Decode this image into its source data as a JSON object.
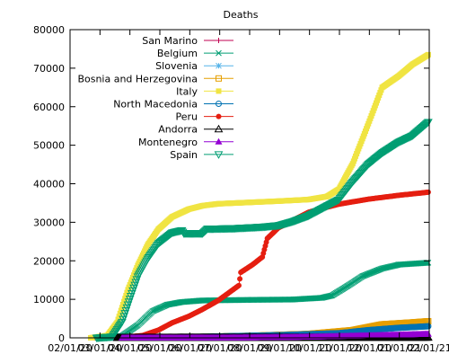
{
  "chart_data": {
    "type": "line",
    "title": "Deaths",
    "xlabel": "",
    "ylabel": "",
    "x_ticks": [
      "02/01/20",
      "03/01/20",
      "04/01/20",
      "05/01/20",
      "06/01/20",
      "07/01/20",
      "08/01/20",
      "09/01/20",
      "10/01/20",
      "11/01/20",
      "12/01/20",
      "01/01/21",
      "02/01/21"
    ],
    "y_ticks": [
      "0",
      "10000",
      "20000",
      "30000",
      "40000",
      "50000",
      "60000",
      "70000",
      "80000"
    ],
    "xlim": [
      "2020-02-01",
      "2021-02-01"
    ],
    "ylim": [
      0,
      80000
    ],
    "grid": false,
    "legend_position": "top-left",
    "series": [
      {
        "name": "San Marino",
        "color": "#c00050",
        "marker": "plus",
        "points": [
          [
            "2020-02-25",
            0
          ],
          [
            "2020-03-15",
            20
          ],
          [
            "2020-04-15",
            40
          ],
          [
            "2020-06-01",
            42
          ],
          [
            "2020-10-01",
            45
          ],
          [
            "2020-12-01",
            58
          ],
          [
            "2021-01-31",
            72
          ]
        ]
      },
      {
        "name": "Belgium",
        "color": "#009e73",
        "marker": "x",
        "points": [
          [
            "2020-03-10",
            0
          ],
          [
            "2020-03-25",
            500
          ],
          [
            "2020-04-10",
            3300
          ],
          [
            "2020-04-25",
            6900
          ],
          [
            "2020-05-10",
            8600
          ],
          [
            "2020-05-25",
            9300
          ],
          [
            "2020-06-15",
            9700
          ],
          [
            "2020-08-01",
            9850
          ],
          [
            "2020-09-15",
            9950
          ],
          [
            "2020-10-15",
            10400
          ],
          [
            "2020-10-25",
            11000
          ],
          [
            "2020-11-10",
            13500
          ],
          [
            "2020-11-25",
            16000
          ],
          [
            "2020-12-15",
            18000
          ],
          [
            "2021-01-01",
            19000
          ],
          [
            "2021-01-31",
            19500
          ]
        ]
      },
      {
        "name": "Slovenia",
        "color": "#56b4e9",
        "marker": "asterisk",
        "points": [
          [
            "2020-03-15",
            0
          ],
          [
            "2020-06-01",
            110
          ],
          [
            "2020-10-01",
            160
          ],
          [
            "2020-11-01",
            700
          ],
          [
            "2020-12-01",
            1800
          ],
          [
            "2021-01-01",
            2700
          ],
          [
            "2021-01-31",
            3400
          ]
        ]
      },
      {
        "name": "Bosnia and Herzegovina",
        "color": "#e69f00",
        "marker": "square-open",
        "points": [
          [
            "2020-03-20",
            0
          ],
          [
            "2020-06-01",
            160
          ],
          [
            "2020-08-01",
            500
          ],
          [
            "2020-10-01",
            1000
          ],
          [
            "2020-11-15",
            2000
          ],
          [
            "2020-12-15",
            3500
          ],
          [
            "2021-01-15",
            4000
          ],
          [
            "2021-01-31",
            4300
          ]
        ]
      },
      {
        "name": "Italy",
        "color": "#f0e442",
        "marker": "square-filled",
        "points": [
          [
            "2020-02-22",
            0
          ],
          [
            "2020-03-10",
            600
          ],
          [
            "2020-03-20",
            4000
          ],
          [
            "2020-03-31",
            12500
          ],
          [
            "2020-04-10",
            18800
          ],
          [
            "2020-04-20",
            24100
          ],
          [
            "2020-05-01",
            28200
          ],
          [
            "2020-05-15",
            31400
          ],
          [
            "2020-06-01",
            33400
          ],
          [
            "2020-06-15",
            34300
          ],
          [
            "2020-07-01",
            34800
          ],
          [
            "2020-08-01",
            35150
          ],
          [
            "2020-09-01",
            35500
          ],
          [
            "2020-10-01",
            35900
          ],
          [
            "2020-10-20",
            36700
          ],
          [
            "2020-11-01",
            38600
          ],
          [
            "2020-11-15",
            45200
          ],
          [
            "2020-12-01",
            55600
          ],
          [
            "2020-12-15",
            65000
          ],
          [
            "2021-01-01",
            68000
          ],
          [
            "2021-01-15",
            71000
          ],
          [
            "2021-01-31",
            73500
          ]
        ]
      },
      {
        "name": "North Macedonia",
        "color": "#0072b2",
        "marker": "circle-open",
        "points": [
          [
            "2020-03-20",
            0
          ],
          [
            "2020-06-01",
            200
          ],
          [
            "2020-09-01",
            700
          ],
          [
            "2020-11-01",
            1200
          ],
          [
            "2020-12-01",
            2000
          ],
          [
            "2021-01-01",
            2600
          ],
          [
            "2021-01-31",
            3000
          ]
        ]
      },
      {
        "name": "Peru",
        "color": "#e51e10",
        "marker": "circle-filled",
        "points": [
          [
            "2020-03-20",
            0
          ],
          [
            "2020-04-15",
            600
          ],
          [
            "2020-05-01",
            2000
          ],
          [
            "2020-05-15",
            3900
          ],
          [
            "2020-06-01",
            5600
          ],
          [
            "2020-06-15",
            7400
          ],
          [
            "2020-07-01",
            9700
          ],
          [
            "2020-07-22",
            13600
          ],
          [
            "2020-07-24",
            17000
          ],
          [
            "2020-08-05",
            19000
          ],
          [
            "2020-08-15",
            21000
          ],
          [
            "2020-08-20",
            25800
          ],
          [
            "2020-08-31",
            28500
          ],
          [
            "2020-09-15",
            30500
          ],
          [
            "2020-10-01",
            32600
          ],
          [
            "2020-10-15",
            33600
          ],
          [
            "2020-11-01",
            34700
          ],
          [
            "2020-12-01",
            36000
          ],
          [
            "2021-01-01",
            37000
          ],
          [
            "2021-01-31",
            37800
          ]
        ]
      },
      {
        "name": "Andorra",
        "color": "#000000",
        "marker": "triangle-open",
        "points": [
          [
            "2020-03-20",
            0
          ],
          [
            "2020-06-01",
            50
          ],
          [
            "2020-12-01",
            75
          ],
          [
            "2021-01-31",
            100
          ]
        ]
      },
      {
        "name": "Montenegro",
        "color": "#9400d3",
        "marker": "triangle-filled",
        "points": [
          [
            "2020-03-25",
            0
          ],
          [
            "2020-07-01",
            20
          ],
          [
            "2020-09-01",
            150
          ],
          [
            "2020-10-01",
            250
          ],
          [
            "2020-11-01",
            420
          ],
          [
            "2020-12-01",
            600
          ],
          [
            "2021-01-01",
            800
          ],
          [
            "2021-01-31",
            1000
          ]
        ]
      },
      {
        "name": "Spain",
        "color": "#009e73",
        "marker": "triangle-down-open",
        "points": [
          [
            "2020-02-28",
            0
          ],
          [
            "2020-03-15",
            300
          ],
          [
            "2020-03-25",
            4100
          ],
          [
            "2020-04-01",
            9400
          ],
          [
            "2020-04-10",
            15900
          ],
          [
            "2020-04-20",
            20500
          ],
          [
            "2020-05-01",
            24500
          ],
          [
            "2020-05-15",
            27300
          ],
          [
            "2020-05-25",
            27900
          ],
          [
            "2020-05-27",
            27100
          ],
          [
            "2020-06-15",
            27100
          ],
          [
            "2020-06-20",
            28300
          ],
          [
            "2020-07-15",
            28400
          ],
          [
            "2020-08-15",
            28800
          ],
          [
            "2020-09-01",
            29200
          ],
          [
            "2020-09-15",
            30200
          ],
          [
            "2020-10-01",
            31700
          ],
          [
            "2020-10-15",
            33600
          ],
          [
            "2020-11-01",
            35900
          ],
          [
            "2020-11-15",
            40500
          ],
          [
            "2020-12-01",
            45100
          ],
          [
            "2020-12-15",
            48000
          ],
          [
            "2021-01-01",
            50800
          ],
          [
            "2021-01-15",
            52500
          ],
          [
            "2021-01-31",
            56000
          ]
        ]
      }
    ]
  }
}
